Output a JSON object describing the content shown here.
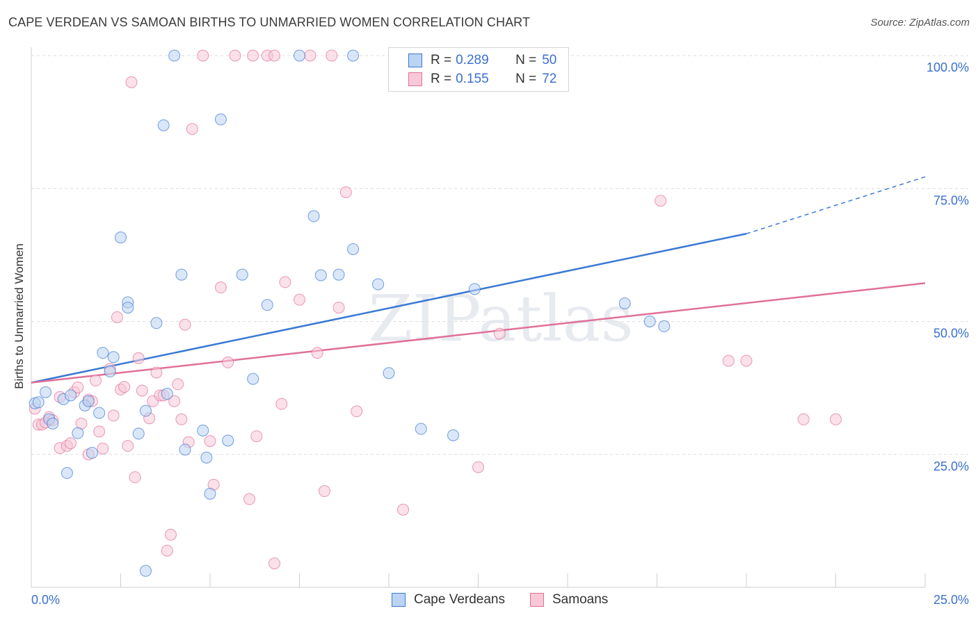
{
  "title": "CAPE VERDEAN VS SAMOAN BIRTHS TO UNMARRIED WOMEN CORRELATION CHART",
  "source": "Source: ZipAtlas.com",
  "watermark": "ZIPatlas",
  "legend": {
    "rows": [
      {
        "r_label": "R =",
        "r_value": "0.289",
        "n_label": "N =",
        "n_value": "50"
      },
      {
        "r_label": "R =",
        "r_value": "0.155",
        "n_label": "N =",
        "n_value": "72"
      }
    ]
  },
  "chart_data": {
    "type": "scatter",
    "title": "CAPE VERDEAN VS SAMOAN BIRTHS TO UNMARRIED WOMEN CORRELATION CHART",
    "xlabel": "",
    "ylabel": "Births to Unmarried Women",
    "xlim": [
      0,
      25
    ],
    "ylim": [
      0,
      100
    ],
    "x_tick_labels": [
      "0.0%",
      "25.0%"
    ],
    "y_tick_labels": [
      "25.0%",
      "50.0%",
      "75.0%",
      "100.0%"
    ],
    "y_ticks": [
      25,
      50,
      75,
      100
    ],
    "grid": true,
    "legend_position": "top-center",
    "colors": {
      "cape_verdeans": "#3a78d4",
      "samoans": "#e07098",
      "cape_verdeans_fill": "#bcd3f3",
      "samoans_fill": "#f8c8d7"
    },
    "series": [
      {
        "name": "Cape Verdeans",
        "r": 0.289,
        "n": 50,
        "trend": {
          "x0": 0,
          "y0": 38.5,
          "x1": 20,
          "y1": 66.5,
          "dashed_to": 25,
          "dashed_y": 77.2
        },
        "points": [
          [
            0.1,
            34.6
          ],
          [
            0.2,
            34.8
          ],
          [
            0.4,
            36.7
          ],
          [
            0.5,
            31.6
          ],
          [
            0.6,
            30.8
          ],
          [
            0.9,
            35.4
          ],
          [
            1.0,
            21.5
          ],
          [
            1.1,
            36.1
          ],
          [
            1.3,
            29.0
          ],
          [
            1.5,
            34.2
          ],
          [
            1.6,
            35.0
          ],
          [
            1.7,
            25.3
          ],
          [
            1.9,
            32.8
          ],
          [
            2.0,
            44.1
          ],
          [
            2.2,
            40.6
          ],
          [
            2.3,
            43.3
          ],
          [
            2.5,
            65.8
          ],
          [
            2.7,
            53.6
          ],
          [
            2.7,
            52.6
          ],
          [
            3.0,
            28.9
          ],
          [
            3.2,
            33.2
          ],
          [
            3.2,
            3.1
          ],
          [
            3.5,
            49.7
          ],
          [
            3.7,
            86.9
          ],
          [
            3.8,
            36.4
          ],
          [
            4.0,
            100.0
          ],
          [
            4.2,
            58.8
          ],
          [
            4.3,
            25.9
          ],
          [
            4.8,
            29.5
          ],
          [
            4.9,
            24.4
          ],
          [
            5.0,
            17.6
          ],
          [
            5.3,
            88.0
          ],
          [
            5.5,
            27.6
          ],
          [
            5.9,
            58.8
          ],
          [
            6.2,
            39.2
          ],
          [
            6.6,
            53.1
          ],
          [
            7.5,
            100.0
          ],
          [
            7.9,
            69.8
          ],
          [
            8.1,
            58.7
          ],
          [
            8.6,
            58.8
          ],
          [
            9.0,
            63.6
          ],
          [
            9.0,
            100.0
          ],
          [
            9.7,
            57.0
          ],
          [
            10.0,
            40.3
          ],
          [
            10.9,
            29.8
          ],
          [
            11.8,
            28.6
          ],
          [
            12.4,
            56.1
          ],
          [
            16.6,
            53.4
          ],
          [
            17.3,
            50.0
          ],
          [
            17.7,
            49.1
          ]
        ]
      },
      {
        "name": "Samoans",
        "r": 0.155,
        "n": 72,
        "trend": {
          "x0": 0,
          "y0": 38.5,
          "x1": 25,
          "y1": 57.2
        },
        "points": [
          [
            0.1,
            33.6
          ],
          [
            0.2,
            30.6
          ],
          [
            0.3,
            30.6
          ],
          [
            0.4,
            31.0
          ],
          [
            0.5,
            32.0
          ],
          [
            0.6,
            31.4
          ],
          [
            0.8,
            35.8
          ],
          [
            0.8,
            26.2
          ],
          [
            1.0,
            26.6
          ],
          [
            1.1,
            27.1
          ],
          [
            1.2,
            36.7
          ],
          [
            1.3,
            37.6
          ],
          [
            1.4,
            30.8
          ],
          [
            1.6,
            35.3
          ],
          [
            1.6,
            25.0
          ],
          [
            1.7,
            35.0
          ],
          [
            1.8,
            38.9
          ],
          [
            1.9,
            29.3
          ],
          [
            2.0,
            26.1
          ],
          [
            2.2,
            41.1
          ],
          [
            2.3,
            32.3
          ],
          [
            2.4,
            50.8
          ],
          [
            2.5,
            37.2
          ],
          [
            2.6,
            37.7
          ],
          [
            2.7,
            26.6
          ],
          [
            2.8,
            95.0
          ],
          [
            2.9,
            20.7
          ],
          [
            3.0,
            43.1
          ],
          [
            3.1,
            37.0
          ],
          [
            3.3,
            31.8
          ],
          [
            3.4,
            35.0
          ],
          [
            3.5,
            40.4
          ],
          [
            3.6,
            36.1
          ],
          [
            3.7,
            36.1
          ],
          [
            3.8,
            6.9
          ],
          [
            3.9,
            9.9
          ],
          [
            4.0,
            35.0
          ],
          [
            4.1,
            38.2
          ],
          [
            4.2,
            31.6
          ],
          [
            4.3,
            49.4
          ],
          [
            4.4,
            27.3
          ],
          [
            4.5,
            86.2
          ],
          [
            4.8,
            100.0
          ],
          [
            5.0,
            27.5
          ],
          [
            5.1,
            19.3
          ],
          [
            5.3,
            56.4
          ],
          [
            5.5,
            42.3
          ],
          [
            5.7,
            100.0
          ],
          [
            6.1,
            16.6
          ],
          [
            6.2,
            100.0
          ],
          [
            6.3,
            28.4
          ],
          [
            6.6,
            100.0
          ],
          [
            6.8,
            100.0
          ],
          [
            6.8,
            4.5
          ],
          [
            7.0,
            34.5
          ],
          [
            7.1,
            57.4
          ],
          [
            7.5,
            54.1
          ],
          [
            7.8,
            100.0
          ],
          [
            8.0,
            44.1
          ],
          [
            8.2,
            18.1
          ],
          [
            8.4,
            100.0
          ],
          [
            8.6,
            52.6
          ],
          [
            8.8,
            74.3
          ],
          [
            9.1,
            33.1
          ],
          [
            10.4,
            14.6
          ],
          [
            12.5,
            22.6
          ],
          [
            13.1,
            47.7
          ],
          [
            17.6,
            72.7
          ],
          [
            19.5,
            42.6
          ],
          [
            20.0,
            42.6
          ],
          [
            21.6,
            31.6
          ],
          [
            22.5,
            31.6
          ]
        ]
      }
    ]
  }
}
